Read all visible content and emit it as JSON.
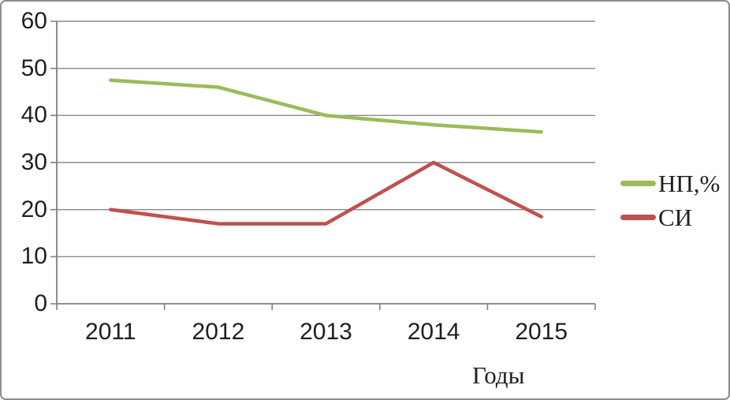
{
  "chart_data": {
    "type": "line",
    "title": "",
    "categories": [
      "2011",
      "2012",
      "2013",
      "2014",
      "2015"
    ],
    "series": [
      {
        "name": "НП,%",
        "color": "#9bbb59",
        "values": [
          47.5,
          46,
          40,
          38,
          36.5
        ]
      },
      {
        "name": "СИ",
        "color": "#c0504d",
        "values": [
          20,
          17,
          17,
          30,
          18.5
        ]
      }
    ],
    "xlabel": "Годы",
    "ylabel": "",
    "ylim": [
      0,
      60
    ],
    "y_ticks": [
      0,
      10,
      20,
      30,
      40,
      50,
      60
    ],
    "grid": true,
    "legend_position": "right"
  },
  "colors": {
    "grid": "#8a8a8a",
    "axis": "#7f7f7f",
    "text": "#1f1f1f",
    "frame_border": "#8d8d8d",
    "background": "#ffffff"
  }
}
